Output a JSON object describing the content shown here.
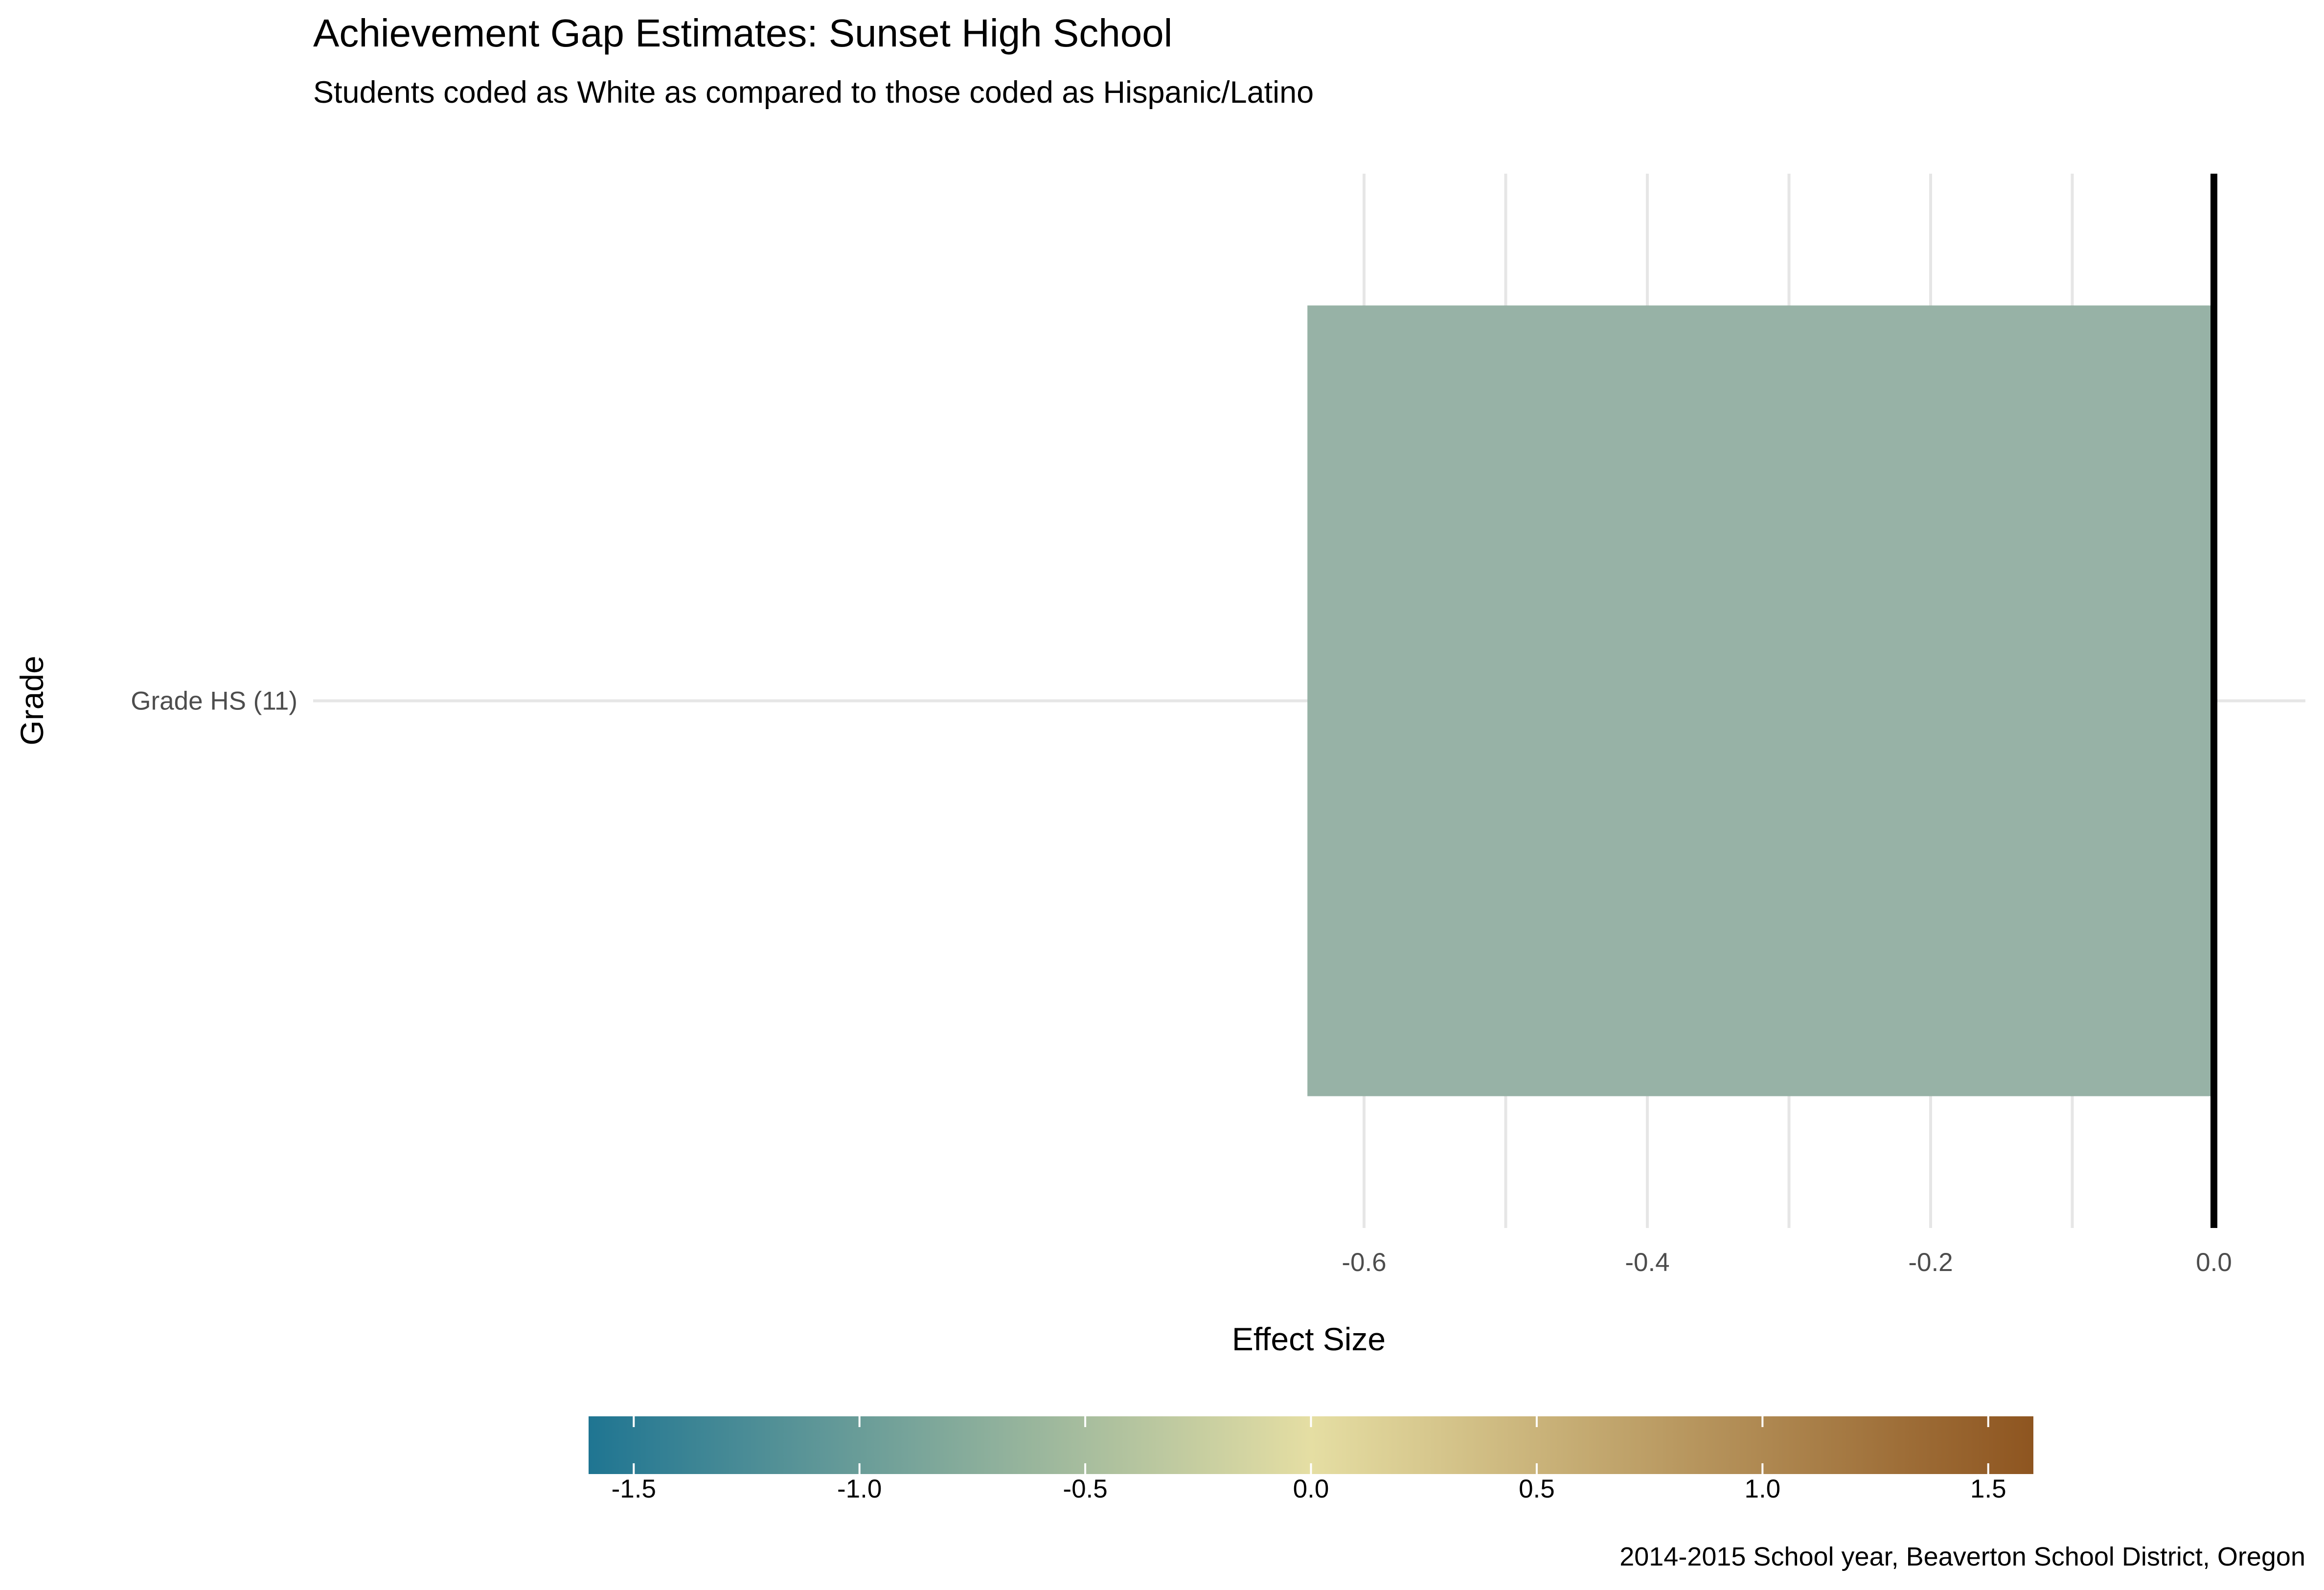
{
  "chart_data": {
    "type": "bar",
    "orientation": "horizontal",
    "title": "Achievement Gap Estimates: Sunset High School",
    "subtitle": "Students coded as White as compared to those coded as Hispanic/Latino",
    "xlabel": "Effect Size",
    "ylabel": "Grade",
    "caption": "2014-2015 School year, Beaverton School District, Oregon",
    "categories": [
      "Grade HS (11)"
    ],
    "values": [
      -0.64
    ],
    "xlim": [
      -0.75,
      0.02
    ],
    "xticks": [
      -0.6,
      -0.4,
      -0.2,
      0.0
    ],
    "xtick_labels": [
      "-0.6",
      "-0.4",
      "-0.2",
      "0.0"
    ],
    "reference_line": 0.0,
    "grid": true,
    "bar_color": "#97b2a6",
    "legend": {
      "type": "colorbar",
      "placement": "bottom",
      "range": [
        -1.6,
        1.6
      ],
      "ticks": [
        -1.5,
        -1.0,
        -0.5,
        0.0,
        0.5,
        1.0,
        1.5
      ],
      "tick_labels": [
        "-1.5",
        "-1.0",
        "-0.5",
        "0.0",
        "0.5",
        "1.0",
        "1.5"
      ],
      "colors": [
        "#1f7592",
        "#e5dea3",
        "#8e5520"
      ]
    }
  }
}
